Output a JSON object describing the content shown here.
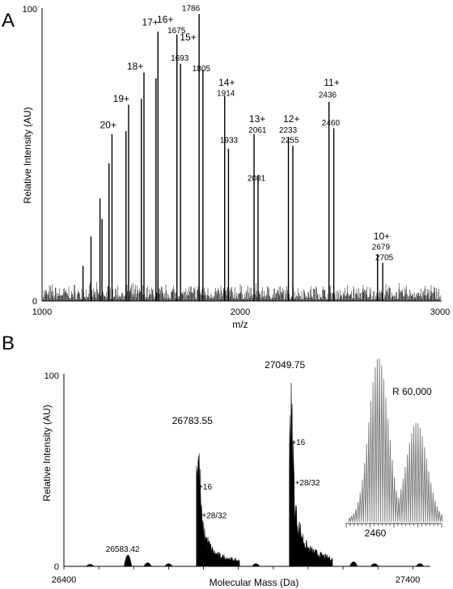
{
  "chart_data": [
    {
      "panel_letter": "A",
      "type": "line",
      "xlabel": "m/z",
      "ylabel": "Relative Intensity (AU)",
      "xlim": [
        1000,
        3000
      ],
      "ylim": [
        0,
        100
      ],
      "x_ticks": [
        "1000",
        "2000",
        "3000"
      ],
      "y_ticks": [
        "0",
        "100"
      ],
      "noise_level": 4,
      "peaks": [
        {
          "x": 1205,
          "y": 12
        },
        {
          "x": 1245,
          "y": 22
        },
        {
          "x": 1290,
          "y": 35
        },
        {
          "x": 1300,
          "y": 28
        },
        {
          "x": 1335,
          "y": 47
        },
        {
          "x": 1350,
          "y": 57
        },
        {
          "x": 1420,
          "y": 58
        },
        {
          "x": 1433,
          "y": 67
        },
        {
          "x": 1497,
          "y": 69
        },
        {
          "x": 1510,
          "y": 78
        },
        {
          "x": 1570,
          "y": 76
        },
        {
          "x": 1580,
          "y": 92
        },
        {
          "x": 1675,
          "y": 91
        },
        {
          "x": 1693,
          "y": 81
        },
        {
          "x": 1786,
          "y": 98
        },
        {
          "x": 1805,
          "y": 79
        },
        {
          "x": 1914,
          "y": 70
        },
        {
          "x": 1933,
          "y": 52
        },
        {
          "x": 2061,
          "y": 57
        },
        {
          "x": 2081,
          "y": 43
        },
        {
          "x": 2233,
          "y": 56
        },
        {
          "x": 2255,
          "y": 53
        },
        {
          "x": 2436,
          "y": 68
        },
        {
          "x": 2460,
          "y": 59
        },
        {
          "x": 2679,
          "y": 16
        },
        {
          "x": 2705,
          "y": 13
        }
      ],
      "annotations": [
        {
          "text": "20+",
          "x": 1290,
          "y": 59
        },
        {
          "text": "19+",
          "x": 1355,
          "y": 68
        },
        {
          "text": "18+",
          "x": 1425,
          "y": 79
        },
        {
          "text": "17+",
          "x": 1500,
          "y": 94
        },
        {
          "text": "16+",
          "x": 1575,
          "y": 95
        },
        {
          "text": "1675",
          "x": 1628,
          "y": 91.5
        },
        {
          "text": "15+",
          "x": 1690,
          "y": 89
        },
        {
          "text": "1786",
          "x": 1700,
          "y": 99
        },
        {
          "text": "1693",
          "x": 1644,
          "y": 82
        },
        {
          "text": "1805",
          "x": 1752,
          "y": 78.5
        },
        {
          "text": "14+",
          "x": 1883,
          "y": 73.5
        },
        {
          "text": "1914",
          "x": 1875,
          "y": 70
        },
        {
          "text": "1933",
          "x": 1890,
          "y": 54
        },
        {
          "text": "13+",
          "x": 2036,
          "y": 61
        },
        {
          "text": "2061",
          "x": 2033,
          "y": 57.5
        },
        {
          "text": "2081",
          "x": 2028,
          "y": 41
        },
        {
          "text": "12+",
          "x": 2207,
          "y": 61
        },
        {
          "text": "2233",
          "x": 2186,
          "y": 57.5
        },
        {
          "text": "2255",
          "x": 2195,
          "y": 54
        },
        {
          "text": "11+",
          "x": 2410,
          "y": 73.5
        },
        {
          "text": "2436",
          "x": 2384,
          "y": 69.5
        },
        {
          "text": "2460",
          "x": 2400,
          "y": 60
        },
        {
          "text": "10+",
          "x": 2659,
          "y": 21
        },
        {
          "text": "2679",
          "x": 2651,
          "y": 17.5
        },
        {
          "text": "2705",
          "x": 2668,
          "y": 14
        }
      ]
    },
    {
      "panel_letter": "B",
      "type": "area",
      "xlabel": "Molecular Mass (Da)",
      "ylabel": "Relative Intensity (AU)",
      "xlim": [
        26400,
        27450
      ],
      "ylim": [
        0,
        100
      ],
      "x_ticks": [
        "26400",
        "27400"
      ],
      "y_ticks": [
        "0",
        "100"
      ],
      "peaks": [
        {
          "x": 26583.42,
          "y": 6
        },
        {
          "x": 26783.55,
          "y": 72
        },
        {
          "x": 26800,
          "y": 37
        },
        {
          "x": 26815,
          "y": 22
        },
        {
          "x": 27049.75,
          "y": 100
        },
        {
          "x": 27066,
          "y": 60
        },
        {
          "x": 27080,
          "y": 38
        }
      ],
      "annotations": [
        {
          "text": "26583.42",
          "x": 26520,
          "y": 7.5
        },
        {
          "text": "26783.55",
          "x": 26710,
          "y": 74
        },
        {
          "text": "+16",
          "x": 26785,
          "y": 40
        },
        {
          "text": "+28/32",
          "x": 26795,
          "y": 25
        },
        {
          "text": "27049.75",
          "x": 26975,
          "y": 103
        },
        {
          "text": "+16",
          "x": 27052,
          "y": 63
        },
        {
          "text": "+28/32",
          "x": 27062,
          "y": 42
        }
      ],
      "inset": {
        "label": "R 60,000",
        "tick_label": "2460"
      }
    }
  ]
}
